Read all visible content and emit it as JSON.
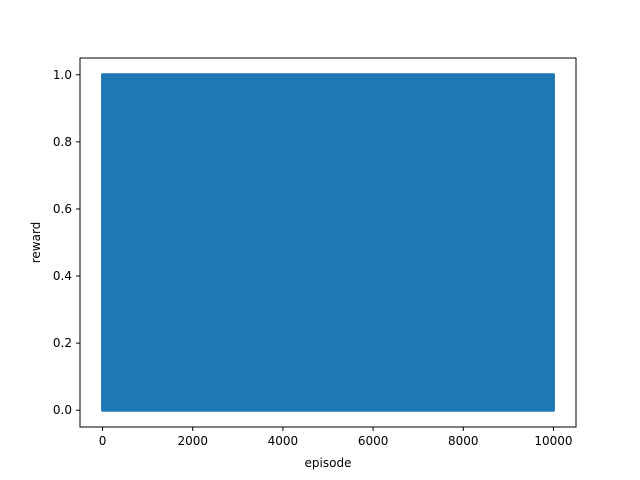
{
  "chart_data": {
    "type": "line",
    "title": "",
    "xlabel": "episode",
    "ylabel": "reward",
    "xlim": [
      -500,
      10500
    ],
    "ylim": [
      -0.05,
      1.05
    ],
    "xticks": [
      0,
      2000,
      4000,
      6000,
      8000,
      10000
    ],
    "xtick_labels": [
      "0",
      "2000",
      "4000",
      "6000",
      "8000",
      "10000"
    ],
    "yticks": [
      0.0,
      0.2,
      0.4,
      0.6,
      0.8,
      1.0
    ],
    "ytick_labels": [
      "0.0",
      "0.2",
      "0.4",
      "0.6",
      "0.8",
      "1.0"
    ],
    "grid": false,
    "series": [
      {
        "color": "#1f77b4",
        "x_range": [
          0,
          10000
        ],
        "values_observed": [
          0.0,
          1.0
        ],
        "description_values": "reward oscillates between 0.0 and 1.0 across all episodes"
      }
    ]
  }
}
